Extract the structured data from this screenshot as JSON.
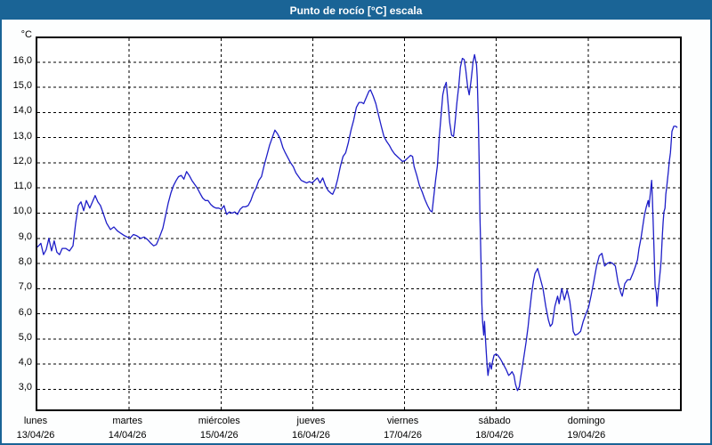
{
  "window": {
    "title": "Punto de rocío [°C] escala"
  },
  "colors": {
    "titlebar": "#1a6496",
    "window_border": "#1a6496",
    "line": "#1e1ec8",
    "grid": "#000000",
    "plot_background": "#ffffff"
  },
  "chart_data": {
    "type": "line",
    "title": "Punto de rocío [°C] escala",
    "ylabel": "°C",
    "xlabel": "",
    "grid": "dashed black, horizontal every 1°C and vertical at each day boundary",
    "legend": "none",
    "ylim": [
      2.2,
      16.95
    ],
    "xlim_hours": [
      0,
      168
    ],
    "yticks": [
      {
        "v": 16,
        "label": "16,0"
      },
      {
        "v": 15,
        "label": "15,0"
      },
      {
        "v": 14,
        "label": "14,0"
      },
      {
        "v": 13,
        "label": "13,0"
      },
      {
        "v": 12,
        "label": "12,0"
      },
      {
        "v": 11,
        "label": "11,0"
      },
      {
        "v": 10,
        "label": "10,0"
      },
      {
        "v": 9,
        "label": "9,0"
      },
      {
        "v": 8,
        "label": "8,0"
      },
      {
        "v": 7,
        "label": "7,0"
      },
      {
        "v": 6,
        "label": "6,0"
      },
      {
        "v": 5,
        "label": "5,0"
      },
      {
        "v": 4,
        "label": "4,0"
      },
      {
        "v": 3,
        "label": "3,0"
      }
    ],
    "days": [
      {
        "name": "lunes",
        "date": "13/04/26",
        "hour": 0
      },
      {
        "name": "martes",
        "date": "14/04/26",
        "hour": 24
      },
      {
        "name": "miércoles",
        "date": "15/04/26",
        "hour": 48
      },
      {
        "name": "jueves",
        "date": "16/04/26",
        "hour": 72
      },
      {
        "name": "viernes",
        "date": "17/04/26",
        "hour": 96
      },
      {
        "name": "sábado",
        "date": "18/04/26",
        "hour": 120
      },
      {
        "name": "domingo",
        "date": "19/04/26",
        "hour": 144
      }
    ],
    "series_name": "Punto de rocío [°C]",
    "x_hours": [
      0,
      0.9,
      1.6,
      2.3,
      3.0,
      3.7,
      4.4,
      5.1,
      5.8,
      6.5,
      7.4,
      8.4,
      9.3,
      10.0,
      10.7,
      11.4,
      12.1,
      12.8,
      13.7,
      14.4,
      15.1,
      15.8,
      16.5,
      17.2,
      18.1,
      19.1,
      20.0,
      20.9,
      21.8,
      22.8,
      23.5,
      24.2,
      25.1,
      26.0,
      27.0,
      27.9,
      28.8,
      29.7,
      30.4,
      31.1,
      31.8,
      32.8,
      33.5,
      34.2,
      34.9,
      35.6,
      36.3,
      36.9,
      37.6,
      38.3,
      39.0,
      39.7,
      40.4,
      41.1,
      41.8,
      42.5,
      43.2,
      43.9,
      44.6,
      45.3,
      46.0,
      46.7,
      47.4,
      48.1,
      48.8,
      49.5,
      50.2,
      50.9,
      51.6,
      52.3,
      53.0,
      53.7,
      54.4,
      55.1,
      55.8,
      56.5,
      57.2,
      57.9,
      58.6,
      59.3,
      60.0,
      60.7,
      61.4,
      62.1,
      62.8,
      63.5,
      64.2,
      64.8,
      65.5,
      66.2,
      66.9,
      67.6,
      68.3,
      69.0,
      69.7,
      70.4,
      71.1,
      71.8,
      72.5,
      73.2,
      73.9,
      74.6,
      75.3,
      76.0,
      76.7,
      77.2,
      77.9,
      78.5,
      79.2,
      79.9,
      80.6,
      81.3,
      82.0,
      82.7,
      83.4,
      84.1,
      84.8,
      85.3,
      86.0,
      86.7,
      87.1,
      87.8,
      88.5,
      89.2,
      89.9,
      90.6,
      91.3,
      92.0,
      92.7,
      93.4,
      94.1,
      94.8,
      95.5,
      96.2,
      96.9,
      97.6,
      98.1,
      98.5,
      99.2,
      99.9,
      100.6,
      101.3,
      102.0,
      102.7,
      103.2,
      103.6,
      104.1,
      104.6,
      105.0,
      105.5,
      106.0,
      106.4,
      106.9,
      107.4,
      107.8,
      108.3,
      108.8,
      109.2,
      109.7,
      110.2,
      110.6,
      111.1,
      111.6,
      112.0,
      112.5,
      112.9,
      113.4,
      113.9,
      114.3,
      114.8,
      115.0,
      115.3,
      115.5,
      115.7,
      116.0,
      116.2,
      116.4,
      116.7,
      116.9,
      117.1,
      117.4,
      117.6,
      117.8,
      118.3,
      118.7,
      119.0,
      119.4,
      119.9,
      120.4,
      121.1,
      121.8,
      122.5,
      123.2,
      123.6,
      124.1,
      124.6,
      125.0,
      125.5,
      126.0,
      126.4,
      126.9,
      127.3,
      127.8,
      128.3,
      128.7,
      129.2,
      129.7,
      130.1,
      130.8,
      131.5,
      132.2,
      132.9,
      133.6,
      134.1,
      134.6,
      135.3,
      136.0,
      136.4,
      137.1,
      137.8,
      138.5,
      139.2,
      139.7,
      140.1,
      140.6,
      141.3,
      142.0,
      142.7,
      143.4,
      144.1,
      144.8,
      145.5,
      146.2,
      146.9,
      147.6,
      148.3,
      149.0,
      149.7,
      150.4,
      151.1,
      151.8,
      152.5,
      152.9,
      153.6,
      154.3,
      155.0,
      155.7,
      156.4,
      156.9,
      157.3,
      157.8,
      158.3,
      158.7,
      159.2,
      159.7,
      159.9,
      160.4,
      160.6,
      160.8,
      161.1,
      161.3,
      161.5,
      161.8,
      162.0,
      162.4,
      162.9,
      163.1,
      163.4,
      163.6,
      163.8,
      164.1,
      164.3,
      164.5,
      165.0,
      165.2,
      165.5,
      165.7,
      165.9,
      166.4,
      166.9,
      167.3
    ],
    "values": [
      8.65,
      8.8,
      8.35,
      8.55,
      9.0,
      8.5,
      8.9,
      8.45,
      8.35,
      8.6,
      8.6,
      8.5,
      8.7,
      9.6,
      10.3,
      10.45,
      10.1,
      10.5,
      10.2,
      10.45,
      10.7,
      10.45,
      10.3,
      10.0,
      9.6,
      9.35,
      9.45,
      9.3,
      9.2,
      9.1,
      9.05,
      9.0,
      9.15,
      9.1,
      9.0,
      9.05,
      8.95,
      8.8,
      8.7,
      8.75,
      9.0,
      9.4,
      9.9,
      10.4,
      10.8,
      11.1,
      11.3,
      11.45,
      11.5,
      11.35,
      11.65,
      11.5,
      11.3,
      11.15,
      11.0,
      10.8,
      10.6,
      10.5,
      10.5,
      10.35,
      10.25,
      10.2,
      10.2,
      10.15,
      10.3,
      9.95,
      10.05,
      10.0,
      10.05,
      9.95,
      10.15,
      10.25,
      10.25,
      10.3,
      10.5,
      10.8,
      11.0,
      11.3,
      11.45,
      11.9,
      12.3,
      12.7,
      13.0,
      13.3,
      13.15,
      12.95,
      12.6,
      12.4,
      12.2,
      12.0,
      11.85,
      11.6,
      11.45,
      11.3,
      11.25,
      11.2,
      11.25,
      11.2,
      11.3,
      11.4,
      11.2,
      11.4,
      11.1,
      10.9,
      10.8,
      10.75,
      11.0,
      11.35,
      11.85,
      12.25,
      12.4,
      12.8,
      13.3,
      13.7,
      14.2,
      14.4,
      14.4,
      14.35,
      14.6,
      14.85,
      14.9,
      14.65,
      14.35,
      13.9,
      13.45,
      13.05,
      12.85,
      12.7,
      12.5,
      12.35,
      12.25,
      12.15,
      12.05,
      12.1,
      12.2,
      12.3,
      12.25,
      11.85,
      11.5,
      11.1,
      10.85,
      10.55,
      10.3,
      10.1,
      10.05,
      10.6,
      11.3,
      11.9,
      12.9,
      13.8,
      14.7,
      15.0,
      15.2,
      14.3,
      13.6,
      13.1,
      13.05,
      13.6,
      14.4,
      15.1,
      15.8,
      16.15,
      16.1,
      15.7,
      15.0,
      14.7,
      15.3,
      16.0,
      16.3,
      15.9,
      15.4,
      13.7,
      12.0,
      10.0,
      8.0,
      6.4,
      5.7,
      5.15,
      5.7,
      5.1,
      4.4,
      3.9,
      3.55,
      4.05,
      3.8,
      4.1,
      4.35,
      4.4,
      4.35,
      4.2,
      4.0,
      3.8,
      3.55,
      3.6,
      3.7,
      3.55,
      3.2,
      2.95,
      3.1,
      3.5,
      4.0,
      4.4,
      4.9,
      5.5,
      6.1,
      6.8,
      7.3,
      7.6,
      7.8,
      7.4,
      7.0,
      6.3,
      5.75,
      5.5,
      5.6,
      6.3,
      6.7,
      6.4,
      7.0,
      6.55,
      6.95,
      6.5,
      5.9,
      5.3,
      5.15,
      5.2,
      5.3,
      5.7,
      6.0,
      6.25,
      6.75,
      7.3,
      7.9,
      8.3,
      8.4,
      7.9,
      8.0,
      8.05,
      8.0,
      7.9,
      7.25,
      6.85,
      6.7,
      7.2,
      7.35,
      7.35,
      7.6,
      7.9,
      8.15,
      8.6,
      9.0,
      9.5,
      9.9,
      10.25,
      10.5,
      10.25,
      11.0,
      11.3,
      10.5,
      9.2,
      8.15,
      7.1,
      6.85,
      6.3,
      7.0,
      7.8,
      8.15,
      9.1,
      9.65,
      10.05,
      10.2,
      10.75,
      11.0,
      11.7,
      12.05,
      12.4,
      12.8,
      13.25,
      13.45,
      13.45,
      13.4
    ]
  }
}
